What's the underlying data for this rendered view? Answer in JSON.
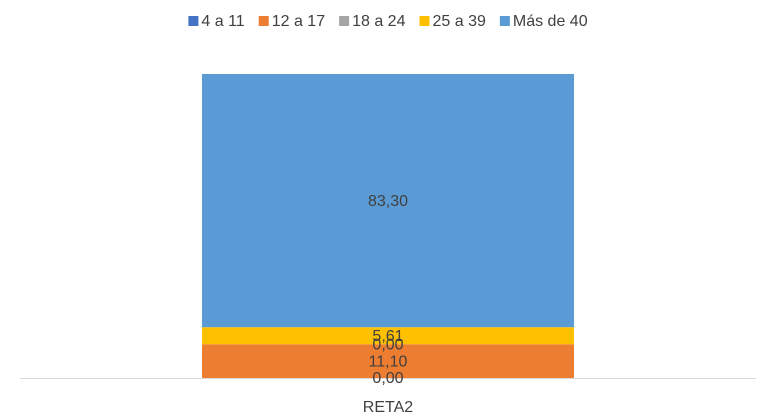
{
  "chart_data": {
    "type": "stacked_bar",
    "categories": [
      "RETA2"
    ],
    "series": [
      {
        "name": "4 a 11",
        "color": "#4472c4",
        "values": [
          0.0
        ],
        "value_labels": [
          "0,00"
        ]
      },
      {
        "name": "12 a 17",
        "color": "#ed7d31",
        "values": [
          11.1
        ],
        "value_labels": [
          "11,10"
        ]
      },
      {
        "name": "18 a 24",
        "color": "#a5a5a5",
        "values": [
          0.0
        ],
        "value_labels": [
          "0,00"
        ]
      },
      {
        "name": "25 a 39",
        "color": "#ffc000",
        "values": [
          5.61
        ],
        "value_labels": [
          "5,61"
        ]
      },
      {
        "name": "Más de 40",
        "color": "#5b9bd5",
        "values": [
          83.3
        ],
        "value_labels": [
          "83,30"
        ]
      }
    ]
  }
}
